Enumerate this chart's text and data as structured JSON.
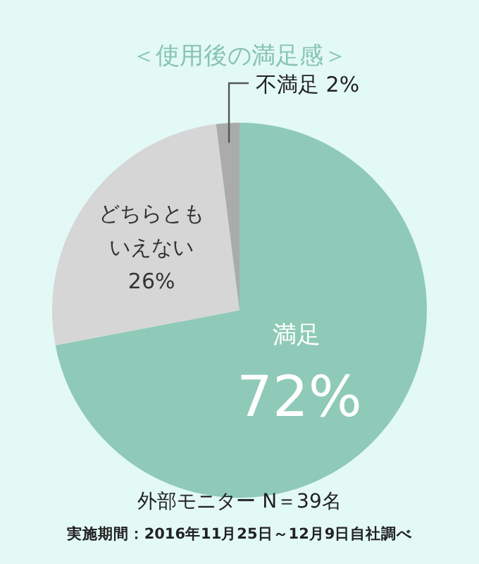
{
  "chart_data": {
    "type": "pie",
    "title": "＜使用後の満足感＞",
    "categories": [
      "満足",
      "どちらともいえない",
      "不満足"
    ],
    "values": [
      72,
      26,
      2
    ],
    "colors": [
      "#8ecab7",
      "#d6d6d6",
      "#ababab"
    ],
    "value_labels": [
      "72%",
      "26%",
      "2%"
    ],
    "annotations": [
      "外部モニター N＝39名",
      "実施期間：2016年11月25日～12月9日自社調べ"
    ]
  }
}
